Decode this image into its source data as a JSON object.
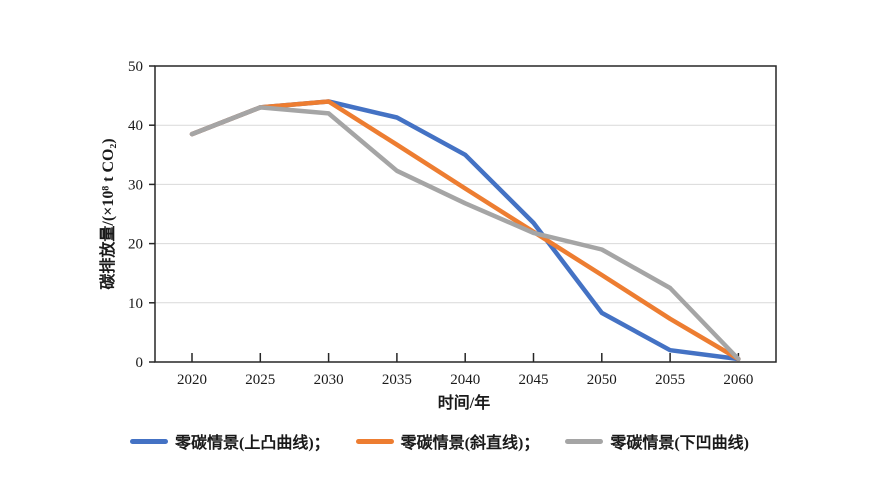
{
  "figure": {
    "background": "#ffffff",
    "axis_color": "#262626",
    "grid_color": "#d9d9d9",
    "text_color": "#1a1a1a"
  },
  "chart_data": {
    "type": "line",
    "title": "",
    "xlabel": "时间/年",
    "ylabel": "碳排放量/(×10⁸ t CO₂)",
    "x": [
      2020,
      2025,
      2030,
      2035,
      2040,
      2045,
      2050,
      2055,
      2060
    ],
    "series": [
      {
        "name": "零碳情景(上凸曲线)",
        "color": "#4472C4",
        "values": [
          38.5,
          43,
          44,
          41.3,
          35,
          23.5,
          8.3,
          2,
          0.5
        ]
      },
      {
        "name": "零碳情景(斜直线)",
        "color": "#ED7D31",
        "values": [
          38.5,
          43,
          44,
          36.7,
          29.3,
          22,
          14.7,
          7.3,
          0.5
        ]
      },
      {
        "name": "零碳情景(下凹曲线)",
        "color": "#A5A5A5",
        "values": [
          38.5,
          43,
          42,
          32.3,
          26.8,
          21.8,
          19,
          12.5,
          0.5
        ]
      }
    ],
    "ylim": [
      0,
      50
    ],
    "yticks": [
      0,
      10,
      20,
      30,
      40,
      50
    ],
    "grid": "horizontal",
    "legend_position": "bottom",
    "legend_labels": [
      "零碳情景(上凸曲线)；",
      "零碳情景(斜直线)；",
      "零碳情景(下凹曲线)"
    ]
  }
}
